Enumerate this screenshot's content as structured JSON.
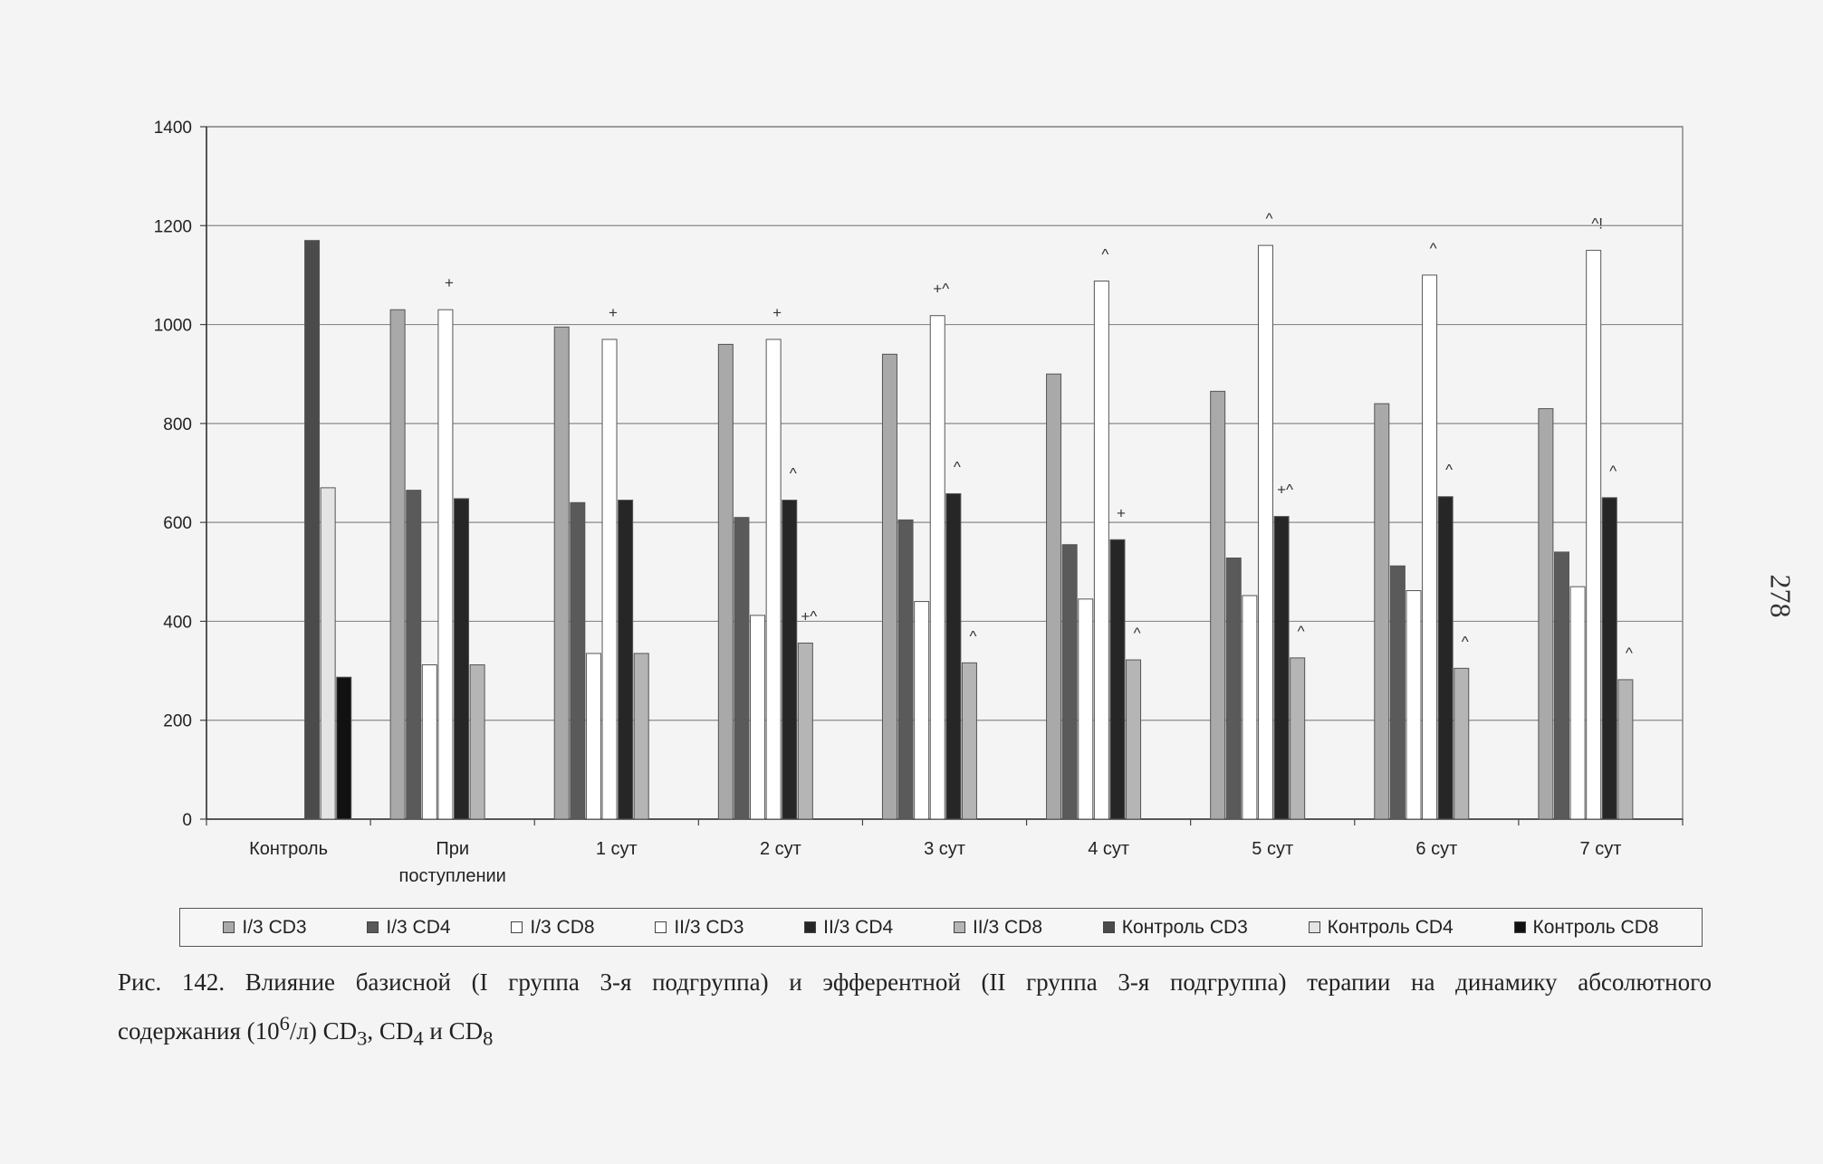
{
  "page_number": "278",
  "caption": {
    "line1": "Рис. 142. Влияние базисной (I группа 3-я подгруппа) и эфферентной (II группа 3-я подгруппа) терапии на динамику абсолютного",
    "line2_prefix": "содержания (10",
    "line2_sup": "6",
    "line2_mid": "/л) CD",
    "sub3": "3",
    "sep1": ", CD",
    "sub4": "4",
    "sep2": " и CD",
    "sub8": "8"
  },
  "chart_data": {
    "type": "bar",
    "title": "",
    "xlabel": "",
    "ylabel": "",
    "ylim": [
      0,
      1400
    ],
    "yticks": [
      0,
      200,
      400,
      600,
      800,
      1000,
      1200,
      1400
    ],
    "grid": true,
    "legend_position": "bottom",
    "categories": [
      "Контроль",
      "При поступлении",
      "1 сут",
      "2 сут",
      "3 сут",
      "4 сут",
      "5 сут",
      "6 сут",
      "7 сут"
    ],
    "category_labels": [
      [
        "Контроль"
      ],
      [
        "При",
        "поступлении"
      ],
      [
        "1 сут"
      ],
      [
        "2 сут"
      ],
      [
        "3 сут"
      ],
      [
        "4 сут"
      ],
      [
        "5 сут"
      ],
      [
        "6 сут"
      ],
      [
        "7 сут"
      ]
    ],
    "series": [
      {
        "name": "I/3 CD3",
        "color": "#a9a9a9",
        "values": [
          null,
          1030,
          995,
          960,
          940,
          900,
          865,
          840,
          830
        ]
      },
      {
        "name": "I/3 CD4",
        "color": "#5a5a5a",
        "values": [
          null,
          665,
          640,
          610,
          605,
          555,
          528,
          512,
          540
        ]
      },
      {
        "name": "I/3 CD8",
        "color": "#ffffff",
        "values": [
          null,
          312,
          335,
          412,
          440,
          445,
          452,
          462,
          470
        ]
      },
      {
        "name": "II/3 CD3",
        "color": "#ffffff",
        "values": [
          null,
          1030,
          970,
          970,
          1018,
          1088,
          1160,
          1100,
          1150
        ]
      },
      {
        "name": "II/3 CD4",
        "color": "#262626",
        "values": [
          null,
          648,
          645,
          645,
          658,
          565,
          612,
          652,
          650
        ]
      },
      {
        "name": "II/3 CD8",
        "color": "#b5b5b5",
        "values": [
          null,
          312,
          335,
          356,
          316,
          322,
          326,
          305,
          282
        ]
      },
      {
        "name": "Контроль CD3",
        "color": "#4b4b4b",
        "values": [
          1170,
          null,
          null,
          null,
          null,
          null,
          null,
          null,
          null
        ]
      },
      {
        "name": "Контроль CD4",
        "color": "#e4e4e4",
        "values": [
          670,
          null,
          null,
          null,
          null,
          null,
          null,
          null,
          null
        ]
      },
      {
        "name": "Контроль CD8",
        "color": "#111111",
        "values": [
          287,
          null,
          null,
          null,
          null,
          null,
          null,
          null,
          null
        ]
      }
    ],
    "annotations": [
      {
        "category": "При поступлении",
        "series": "II/3 CD3",
        "text": "+"
      },
      {
        "category": "1 сут",
        "series": "II/3 CD3",
        "text": "+"
      },
      {
        "category": "2 сут",
        "series": "II/3 CD3",
        "text": "+"
      },
      {
        "category": "2 сут",
        "series": "II/3 CD4",
        "text": "^"
      },
      {
        "category": "2 сут",
        "series": "II/3 CD8",
        "text": "+^"
      },
      {
        "category": "3 сут",
        "series": "II/3 CD3",
        "text": "+^"
      },
      {
        "category": "3 сут",
        "series": "II/3 CD4",
        "text": "^"
      },
      {
        "category": "3 сут",
        "series": "II/3 CD8",
        "text": "^"
      },
      {
        "category": "4 сут",
        "series": "II/3 CD3",
        "text": "^"
      },
      {
        "category": "4 сут",
        "series": "II/3 CD4",
        "text": "+"
      },
      {
        "category": "4 сут",
        "series": "II/3 CD8",
        "text": "^"
      },
      {
        "category": "5 сут",
        "series": "II/3 CD3",
        "text": "^"
      },
      {
        "category": "5 сут",
        "series": "II/3 CD4",
        "text": "+^"
      },
      {
        "category": "5 сут",
        "series": "II/3 CD8",
        "text": "^"
      },
      {
        "category": "6 сут",
        "series": "II/3 CD3",
        "text": "^"
      },
      {
        "category": "6 сут",
        "series": "II/3 CD4",
        "text": "^"
      },
      {
        "category": "6 сут",
        "series": "II/3 CD8",
        "text": "^"
      },
      {
        "category": "7 сут",
        "series": "II/3 CD3",
        "text": "^!"
      },
      {
        "category": "7 сут",
        "series": "II/3 CD4",
        "text": "^"
      },
      {
        "category": "7 сут",
        "series": "II/3 CD8",
        "text": "^"
      }
    ]
  }
}
